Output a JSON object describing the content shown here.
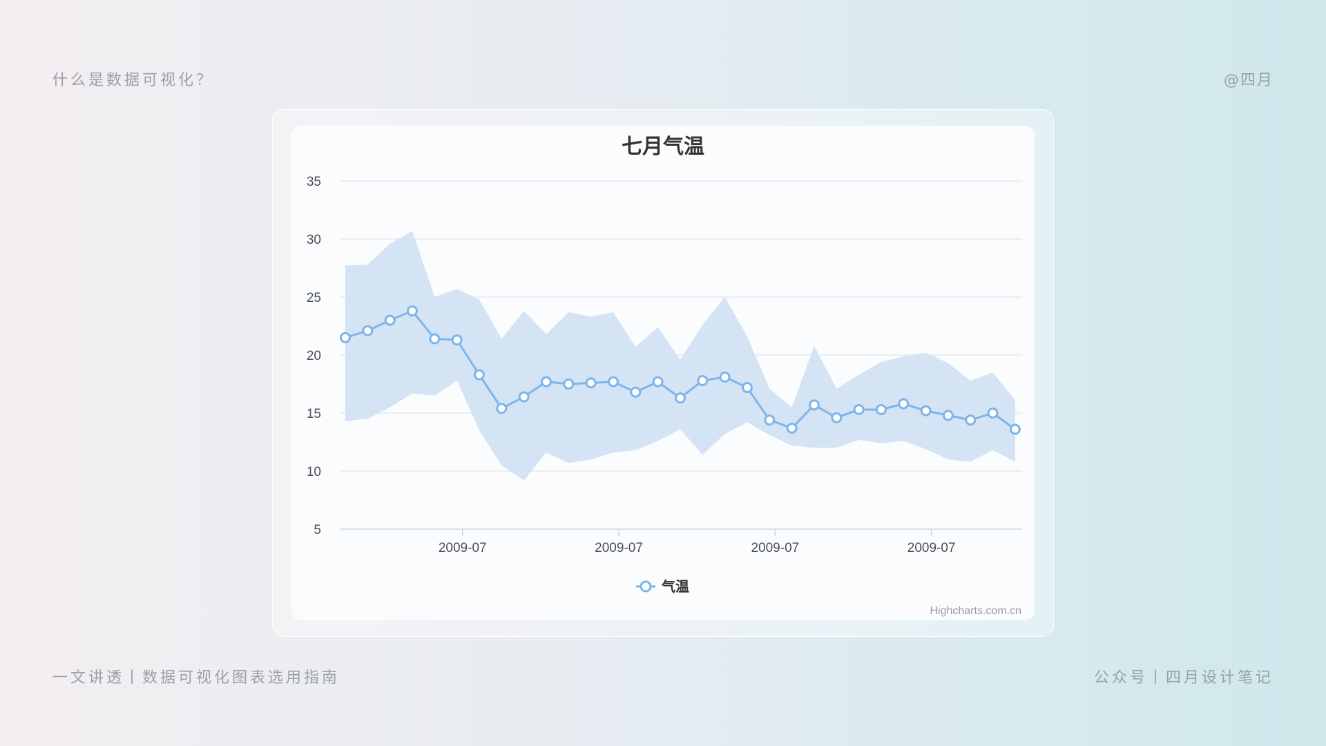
{
  "header": {
    "left": "什么是数据可视化？",
    "right": "@四月"
  },
  "footer": {
    "left": "一文讲透丨数据可视化图表选用指南",
    "right": "公众号丨四月设计笔记"
  },
  "credit": "Highcharts.com.cn",
  "colors": {
    "line": "#7cb5ec",
    "range_fill": "#d4e4f5",
    "grid": "#e4e8ee"
  },
  "chart_data": {
    "type": "line",
    "title": "七月气温",
    "xlabel": "",
    "ylabel": "",
    "ylim": [
      5,
      35
    ],
    "yticks": [
      5,
      10,
      15,
      20,
      25,
      30,
      35
    ],
    "x_tick_labels": [
      "2009-07",
      "2009-07",
      "2009-07",
      "2009-07"
    ],
    "x_tick_indices": [
      5.25,
      12.25,
      19.25,
      26.25
    ],
    "grid": true,
    "legend": {
      "position": "bottom-center",
      "label": "气温"
    },
    "series": [
      {
        "name": "气温",
        "values": [
          21.5,
          22.1,
          23.0,
          23.8,
          21.4,
          21.3,
          18.3,
          15.4,
          16.4,
          17.7,
          17.5,
          17.6,
          17.7,
          16.8,
          17.7,
          16.3,
          17.8,
          18.1,
          17.2,
          14.4,
          13.7,
          15.7,
          14.6,
          15.3,
          15.3,
          15.8,
          15.2,
          14.8,
          14.4,
          15.0,
          13.6
        ]
      }
    ],
    "ranges": [
      [
        14.3,
        27.7
      ],
      [
        14.5,
        27.8
      ],
      [
        15.5,
        29.6
      ],
      [
        16.7,
        30.7
      ],
      [
        16.5,
        25.0
      ],
      [
        17.8,
        25.7
      ],
      [
        13.5,
        24.8
      ],
      [
        10.5,
        21.4
      ],
      [
        9.2,
        23.8
      ],
      [
        11.6,
        21.8
      ],
      [
        10.7,
        23.7
      ],
      [
        11.0,
        23.3
      ],
      [
        11.6,
        23.7
      ],
      [
        11.8,
        20.7
      ],
      [
        12.6,
        22.4
      ],
      [
        13.6,
        19.6
      ],
      [
        11.4,
        22.6
      ],
      [
        13.2,
        25.0
      ],
      [
        14.2,
        21.6
      ],
      [
        13.1,
        17.1
      ],
      [
        12.2,
        15.5
      ],
      [
        12.0,
        20.8
      ],
      [
        12.0,
        17.1
      ],
      [
        12.7,
        18.3
      ],
      [
        12.4,
        19.4
      ],
      [
        12.6,
        19.9
      ],
      [
        11.9,
        20.2
      ],
      [
        11.0,
        19.3
      ],
      [
        10.8,
        17.8
      ],
      [
        11.8,
        18.5
      ],
      [
        10.8,
        16.1
      ]
    ]
  }
}
